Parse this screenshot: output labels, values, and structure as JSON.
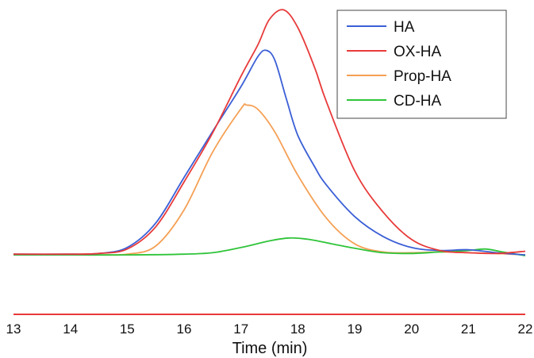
{
  "chart_data": {
    "type": "line",
    "title": "",
    "xlabel": "Time (min)",
    "ylabel": "",
    "xlim": [
      13,
      22
    ],
    "x_ticks": [
      "13",
      "14",
      "15",
      "16",
      "17",
      "18",
      "19",
      "20",
      "21",
      "22"
    ],
    "grid": false,
    "legend_position": "top-right",
    "series": [
      {
        "name": "HA",
        "color": "#3b5fd6",
        "points": [
          [
            13,
            0.03
          ],
          [
            14,
            0.03
          ],
          [
            14.5,
            0.04
          ],
          [
            15,
            0.12
          ],
          [
            15.5,
            0.45
          ],
          [
            16,
            1.07
          ],
          [
            16.5,
            1.69
          ],
          [
            17,
            2.3
          ],
          [
            17.3,
            2.71
          ],
          [
            17.45,
            2.79
          ],
          [
            17.6,
            2.65
          ],
          [
            17.8,
            2.13
          ],
          [
            18,
            1.64
          ],
          [
            18.3,
            1.21
          ],
          [
            18.5,
            0.97
          ],
          [
            19,
            0.54
          ],
          [
            19.5,
            0.27
          ],
          [
            20,
            0.12
          ],
          [
            20.5,
            0.08
          ],
          [
            21,
            0.09
          ],
          [
            21.5,
            0.05
          ],
          [
            22,
            0.02
          ]
        ]
      },
      {
        "name": "OX-HA",
        "color": "#e83a3a",
        "points": [
          [
            13,
            0.03
          ],
          [
            14,
            0.03
          ],
          [
            14.5,
            0.04
          ],
          [
            15,
            0.1
          ],
          [
            15.5,
            0.4
          ],
          [
            16,
            1.01
          ],
          [
            16.5,
            1.67
          ],
          [
            17,
            2.44
          ],
          [
            17.3,
            2.87
          ],
          [
            17.5,
            3.21
          ],
          [
            17.75,
            3.34
          ],
          [
            18,
            3.1
          ],
          [
            18.3,
            2.55
          ],
          [
            18.5,
            2.1
          ],
          [
            19,
            1.16
          ],
          [
            19.5,
            0.6
          ],
          [
            20,
            0.23
          ],
          [
            20.5,
            0.08
          ],
          [
            21,
            0.05
          ],
          [
            21.5,
            0.04
          ],
          [
            22,
            0.07
          ]
        ]
      },
      {
        "name": "Prop-HA",
        "color": "#f5a055",
        "points": [
          [
            13,
            0.02
          ],
          [
            14,
            0.02
          ],
          [
            14.5,
            0.02
          ],
          [
            15,
            0.03
          ],
          [
            15.5,
            0.14
          ],
          [
            16,
            0.63
          ],
          [
            16.5,
            1.41
          ],
          [
            17,
            2.0
          ],
          [
            17.1,
            2.05
          ],
          [
            17.3,
            1.99
          ],
          [
            17.6,
            1.68
          ],
          [
            18,
            1.1
          ],
          [
            18.5,
            0.52
          ],
          [
            19,
            0.17
          ],
          [
            19.5,
            0.06
          ],
          [
            20,
            0.05
          ],
          [
            20.5,
            0.06
          ],
          [
            21,
            0.05
          ],
          [
            21.5,
            0.04
          ],
          [
            22,
            0.02
          ]
        ]
      },
      {
        "name": "CD-HA",
        "color": "#2fc43a",
        "points": [
          [
            13,
            0.02
          ],
          [
            14,
            0.02
          ],
          [
            15,
            0.02
          ],
          [
            16,
            0.03
          ],
          [
            16.5,
            0.05
          ],
          [
            17,
            0.12
          ],
          [
            17.5,
            0.21
          ],
          [
            17.85,
            0.25
          ],
          [
            18.2,
            0.23
          ],
          [
            18.6,
            0.17
          ],
          [
            19,
            0.11
          ],
          [
            19.5,
            0.05
          ],
          [
            20,
            0.04
          ],
          [
            20.5,
            0.06
          ],
          [
            21,
            0.08
          ],
          [
            21.3,
            0.1
          ],
          [
            21.6,
            0.06
          ],
          [
            22,
            0.01
          ]
        ]
      }
    ]
  },
  "axis_line_color": "#e83a3a"
}
